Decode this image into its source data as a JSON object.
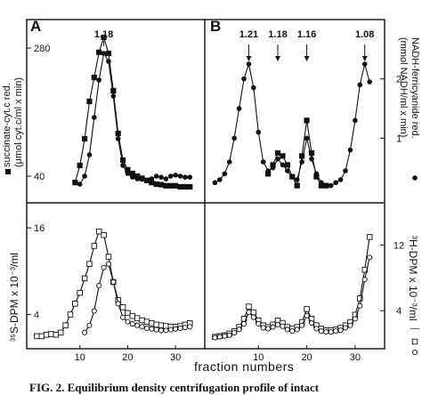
{
  "panels": {
    "A": {
      "letter": "A"
    },
    "B": {
      "letter": "B"
    }
  },
  "top_left_ylabel": {
    "line1": "succinate-cyt.c red.",
    "line2": "(μmol cyt.c/ml x min)"
  },
  "top_right_ylabel": {
    "line1": "NADH-ferricyanide red.",
    "line2": "(mmol NADH/ml x min)"
  },
  "bottom_left_ylabel": "³⁵S-DPM x 10⁻³/ml",
  "bottom_right_ylabel": "³H-DPM x 10⁻³/ml",
  "xlabel": "fraction  numbers",
  "caption": "FIG. 2. Equilibrium density centrifugation profile of intact",
  "density_labels_A": [
    "1.18"
  ],
  "density_labels_B": [
    "1.21",
    "1.18",
    "1.16",
    "1.08"
  ],
  "legend_square": "□",
  "legend_circle": "○",
  "legend_dash": "—",
  "colors": {
    "ink": "#111111"
  },
  "chart_data": [
    {
      "panel": "A-top",
      "type": "line",
      "x": [
        1,
        2,
        3,
        4,
        5,
        6,
        7,
        8,
        9,
        10,
        11,
        12,
        13,
        14,
        15,
        16,
        17,
        18,
        19,
        20,
        21,
        22,
        23,
        24,
        25,
        26,
        27,
        28,
        29,
        30,
        31,
        32,
        33
      ],
      "ylim": [
        0,
        300
      ],
      "xlim": [
        0,
        35
      ],
      "yticks": [
        40,
        280
      ],
      "annotations": [
        {
          "label": "1.18",
          "x": 15
        }
      ],
      "series": [
        {
          "marker": "filled-square",
          "axis": "left",
          "values": [
            null,
            null,
            null,
            null,
            null,
            null,
            null,
            null,
            28,
            60,
            110,
            180,
            225,
            272,
            300,
            270,
            200,
            120,
            70,
            52,
            45,
            40,
            36,
            32,
            28,
            25,
            24,
            22,
            22,
            22,
            20,
            20,
            20
          ]
        },
        {
          "marker": "filled-circle",
          "axis": "left",
          "values": [
            null,
            null,
            null,
            null,
            null,
            null,
            null,
            null,
            null,
            25,
            40,
            80,
            150,
            220,
            270,
            255,
            190,
            110,
            60,
            45,
            38,
            35,
            34,
            32,
            35,
            40,
            38,
            35,
            40,
            42,
            40,
            38,
            38
          ]
        }
      ]
    },
    {
      "panel": "B-top",
      "type": "line",
      "x": [
        1,
        2,
        3,
        4,
        5,
        6,
        7,
        8,
        9,
        10,
        11,
        12,
        13,
        14,
        15,
        16,
        17,
        18,
        19,
        20,
        21,
        22,
        23,
        24,
        25,
        26,
        27,
        28,
        29,
        30,
        31,
        32,
        33
      ],
      "ylim": [
        0,
        2.7
      ],
      "xlim": [
        0,
        35
      ],
      "yticks": [
        1,
        2
      ],
      "annotations": [
        {
          "label": "1.21",
          "x": 8
        },
        {
          "label": "1.18",
          "x": 14
        },
        {
          "label": "1.16",
          "x": 20
        },
        {
          "label": "1.08",
          "x": 32
        }
      ],
      "series": [
        {
          "marker": "filled-square",
          "axis": "left",
          "values": [
            null,
            null,
            null,
            null,
            null,
            null,
            null,
            null,
            null,
            null,
            null,
            0.4,
            0.55,
            0.75,
            0.7,
            0.55,
            0.35,
            0.2,
            0.7,
            1.3,
            0.75,
            0.35,
            0.2,
            0.2,
            null,
            null,
            null,
            null,
            null,
            null,
            null,
            null,
            null
          ]
        },
        {
          "marker": "filled-circle",
          "axis": "right",
          "values": [
            0.25,
            0.3,
            0.4,
            0.6,
            1.0,
            1.5,
            2.0,
            2.25,
            1.85,
            1.1,
            0.6,
            0.45,
            0.5,
            0.65,
            0.55,
            0.45,
            0.35,
            0.3,
            0.6,
            1.0,
            0.65,
            0.4,
            0.25,
            0.2,
            0.2,
            0.25,
            0.3,
            0.45,
            0.8,
            1.3,
            1.9,
            2.25,
            1.95
          ]
        }
      ]
    },
    {
      "panel": "A-bottom",
      "type": "line",
      "x": [
        1,
        2,
        3,
        4,
        5,
        6,
        7,
        8,
        9,
        10,
        11,
        12,
        13,
        14,
        15,
        16,
        17,
        18,
        19,
        20,
        21,
        22,
        23,
        24,
        25,
        26,
        27,
        28,
        29,
        30,
        31,
        32,
        33
      ],
      "ylim": [
        0,
        17
      ],
      "xlim": [
        0,
        35
      ],
      "yticks": [
        4,
        16
      ],
      "xticks": [
        10,
        20,
        30
      ],
      "series": [
        {
          "marker": "open-square",
          "axis": "left",
          "values": [
            1.0,
            1.0,
            1.2,
            1.3,
            1.2,
            1.5,
            2.5,
            4.0,
            5.5,
            7.0,
            9.0,
            11.0,
            13.5,
            15.5,
            15.0,
            12.0,
            8.5,
            6.0,
            5.0,
            4.2,
            3.8,
            3.5,
            3.2,
            3.0,
            2.8,
            2.6,
            2.5,
            2.4,
            2.3,
            2.3,
            2.4,
            2.6,
            2.8
          ]
        },
        {
          "marker": "open-circle",
          "axis": "left",
          "values": [
            null,
            null,
            null,
            null,
            null,
            null,
            null,
            null,
            null,
            null,
            1.5,
            2.5,
            4.5,
            8.0,
            10.5,
            11.0,
            8.5,
            5.5,
            3.6,
            3.0,
            2.7,
            2.5,
            2.3,
            2.1,
            2.0,
            1.9,
            1.8,
            1.8,
            1.9,
            2.0,
            2.1,
            2.2,
            2.3
          ]
        }
      ]
    },
    {
      "panel": "B-bottom",
      "type": "line",
      "x": [
        1,
        2,
        3,
        4,
        5,
        6,
        7,
        8,
        9,
        10,
        11,
        12,
        13,
        14,
        15,
        16,
        17,
        18,
        19,
        20,
        21,
        22,
        23,
        24,
        25,
        26,
        27,
        28,
        29,
        30,
        31,
        32,
        33
      ],
      "ylim": [
        0,
        15
      ],
      "xlim": [
        0,
        35
      ],
      "yticks": [
        4,
        12
      ],
      "xticks": [
        10,
        20,
        30
      ],
      "series": [
        {
          "marker": "open-square",
          "axis": "right",
          "values": [
            0.8,
            0.9,
            1.0,
            1.2,
            1.5,
            2.0,
            3.0,
            4.5,
            3.8,
            2.8,
            2.2,
            2.0,
            2.3,
            2.8,
            2.5,
            2.0,
            1.8,
            2.0,
            2.6,
            4.2,
            3.0,
            2.2,
            1.8,
            1.6,
            1.6,
            1.7,
            1.9,
            2.2,
            2.6,
            3.5,
            5.5,
            9.0,
            13.0
          ]
        },
        {
          "marker": "open-circle",
          "axis": "right",
          "values": [
            0.7,
            0.8,
            0.9,
            1.0,
            1.3,
            1.7,
            2.4,
            3.8,
            3.2,
            2.4,
            1.9,
            1.8,
            2.0,
            2.3,
            2.1,
            1.7,
            1.5,
            1.7,
            2.2,
            3.4,
            2.5,
            1.8,
            1.5,
            1.4,
            1.4,
            1.5,
            1.6,
            1.9,
            2.2,
            3.0,
            4.6,
            7.8,
            10.5
          ]
        }
      ]
    }
  ]
}
